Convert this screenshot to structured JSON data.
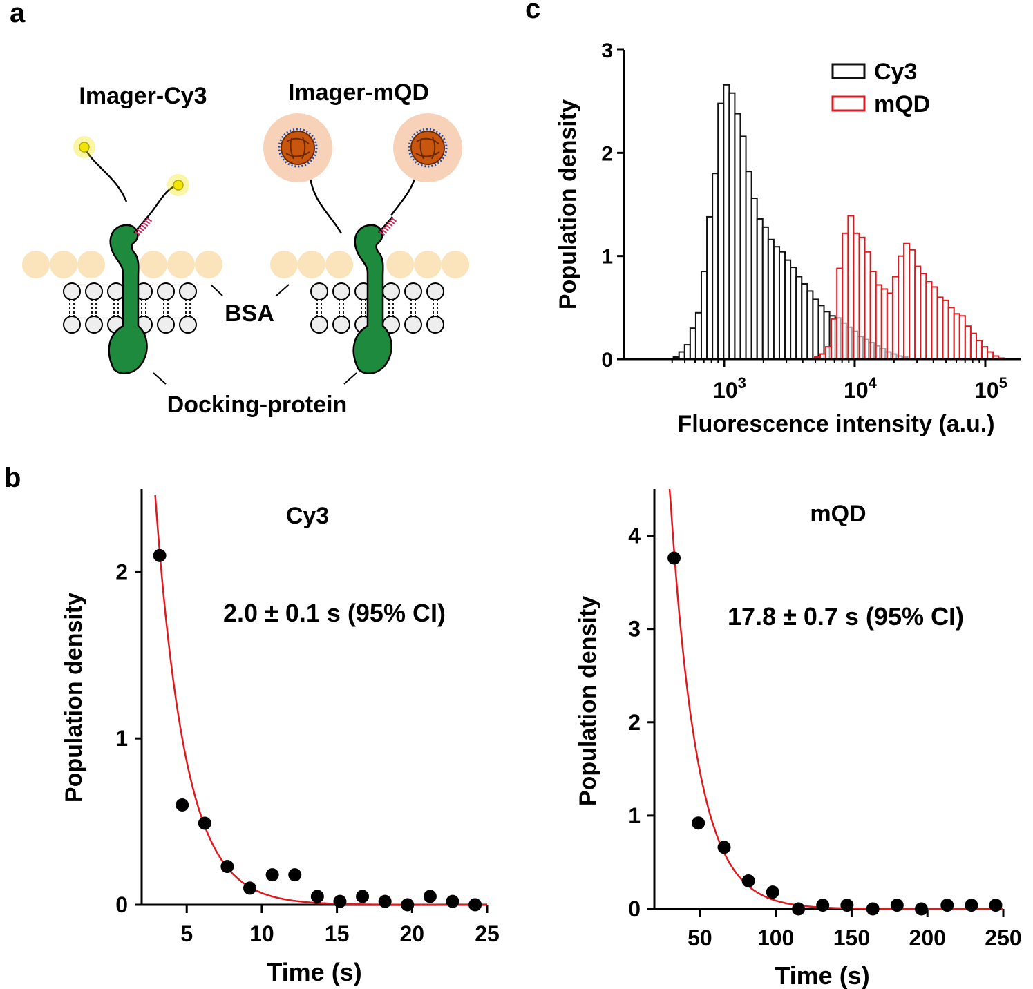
{
  "panel_labels": {
    "a": "a",
    "b": "b",
    "c": "c"
  },
  "schematic": {
    "imager_cy3": "Imager-Cy3",
    "imager_mqd": "Imager-mQD",
    "bsa": "BSA",
    "docking_protein": "Docking-protein"
  },
  "colors": {
    "fit_line": "#e0191f",
    "mqd_hist": "#e0191f",
    "cy3_hist": "#111111",
    "protein": "#1e8a3e",
    "bsa": "#fbe3bc",
    "qd_halo": "#f8d2b8",
    "qd_core": "#c8560e",
    "dye": "#f2e600",
    "dna_ticks": "#d6285a"
  },
  "chart_data": [
    {
      "id": "c",
      "type": "bar",
      "xscale": "log",
      "xlabel": "Fluorescence intensity (a.u.)",
      "ylabel": "Population density",
      "ylim": [
        0,
        3
      ],
      "yticks": [
        "0",
        "1",
        "2",
        "3"
      ],
      "xticks": [
        {
          "value": 1000,
          "base": "10",
          "exp": "3"
        },
        {
          "value": 10000,
          "base": "10",
          "exp": "4"
        },
        {
          "value": 100000,
          "base": "10",
          "exp": "5"
        }
      ],
      "bin_width_log10": 0.0427,
      "legend": {
        "position": "top-right",
        "entries": [
          "Cy3",
          "mQD"
        ]
      },
      "series": [
        {
          "name": "Cy3",
          "color": "#111111",
          "start_log10": 2.612,
          "values": [
            0.02,
            0.07,
            0.14,
            0.3,
            0.45,
            0.85,
            1.38,
            1.8,
            2.48,
            2.66,
            2.58,
            2.38,
            2.16,
            1.82,
            1.56,
            1.36,
            1.28,
            1.16,
            1.09,
            1.04,
            0.96,
            0.89,
            0.8,
            0.73,
            0.66,
            0.58,
            0.52,
            0.46,
            0.42,
            0.4,
            0.35,
            0.31,
            0.27,
            0.22,
            0.19,
            0.16,
            0.13,
            0.1,
            0.07,
            0.05,
            0.03,
            0.02
          ]
        },
        {
          "name": "mQD",
          "color": "#e0191f",
          "start_log10": 3.693,
          "values": [
            0.02,
            0.05,
            0.12,
            0.39,
            0.88,
            1.22,
            1.39,
            1.22,
            1.18,
            1.04,
            0.85,
            0.72,
            0.68,
            0.64,
            0.8,
            1.0,
            1.12,
            1.06,
            0.9,
            0.83,
            0.75,
            0.7,
            0.6,
            0.57,
            0.5,
            0.44,
            0.42,
            0.32,
            0.25,
            0.18,
            0.12,
            0.07,
            0.03,
            0.01
          ]
        }
      ]
    },
    {
      "id": "b-cy3",
      "type": "scatter",
      "title": "Cy3",
      "annotation": "2.0 ± 0.1 s (95% CI)",
      "xlabel": "Time (s)",
      "ylabel": "Population density",
      "xlim": [
        2,
        25
      ],
      "ylim": [
        0,
        2.5
      ],
      "xticks": [
        "5",
        "10",
        "15",
        "20",
        "25"
      ],
      "yticks": [
        "0",
        "1",
        "2"
      ],
      "points": {
        "x": [
          3.2,
          4.7,
          6.2,
          7.7,
          9.2,
          10.7,
          12.2,
          13.7,
          15.2,
          16.7,
          18.2,
          19.7,
          21.2,
          22.7,
          24.2
        ],
        "y": [
          2.1,
          0.6,
          0.49,
          0.23,
          0.1,
          0.18,
          0.18,
          0.05,
          0.02,
          0.05,
          0.02,
          0.0,
          0.05,
          0.02,
          0.0
        ]
      },
      "fit": {
        "model": "A*exp(-x/tau)",
        "A": 10.5,
        "tau": 2.0,
        "x_start": 2.9,
        "x_end": 25
      }
    },
    {
      "id": "b-mqd",
      "type": "scatter",
      "title": "mQD",
      "annotation": "17.8 ± 0.7 s (95% CI)",
      "xlabel": "Time (s)",
      "ylabel": "Population density",
      "xlim": [
        20,
        250
      ],
      "ylim": [
        0,
        4.5
      ],
      "xticks": [
        "50",
        "100",
        "150",
        "200",
        "250"
      ],
      "yticks": [
        "0",
        "1",
        "2",
        "3",
        "4"
      ],
      "points": {
        "x": [
          33,
          49,
          66,
          82,
          98,
          115,
          131,
          147,
          164,
          180,
          196,
          213,
          229,
          245
        ],
        "y": [
          3.76,
          0.92,
          0.66,
          0.3,
          0.18,
          0.0,
          0.04,
          0.04,
          0.0,
          0.04,
          0.0,
          0.04,
          0.04,
          0.04
        ]
      },
      "fit": {
        "model": "A*exp(-x/tau)",
        "A": 24.5,
        "tau": 17.8,
        "x_start": 30,
        "x_end": 250
      }
    }
  ]
}
